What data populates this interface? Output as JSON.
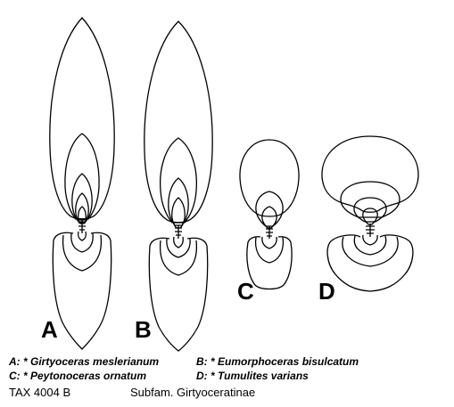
{
  "panels": [
    {
      "letter": "A"
    },
    {
      "letter": "B"
    },
    {
      "letter": "C"
    },
    {
      "letter": "D"
    }
  ],
  "legend": {
    "row1": {
      "left": "A: * Girtyoceras meslerianum",
      "right": "B: * Eumorphoceras bisulcatum"
    },
    "row2": {
      "left": "C: * Peytonoceras ornatum",
      "right": "D: * Tumulites varians"
    }
  },
  "footer": {
    "code": "TAX 4004 B",
    "subfamily": "Subfam. Girtyoceratinae"
  }
}
